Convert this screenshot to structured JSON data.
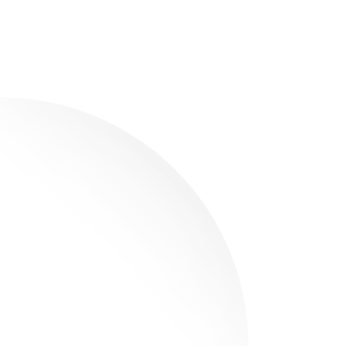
{
  "background_color": "#ffffff",
  "shape": {
    "name": "quarter-disc",
    "fill_gradient": {
      "light": "#ffffff",
      "dark": "#e9e9ea"
    }
  }
}
